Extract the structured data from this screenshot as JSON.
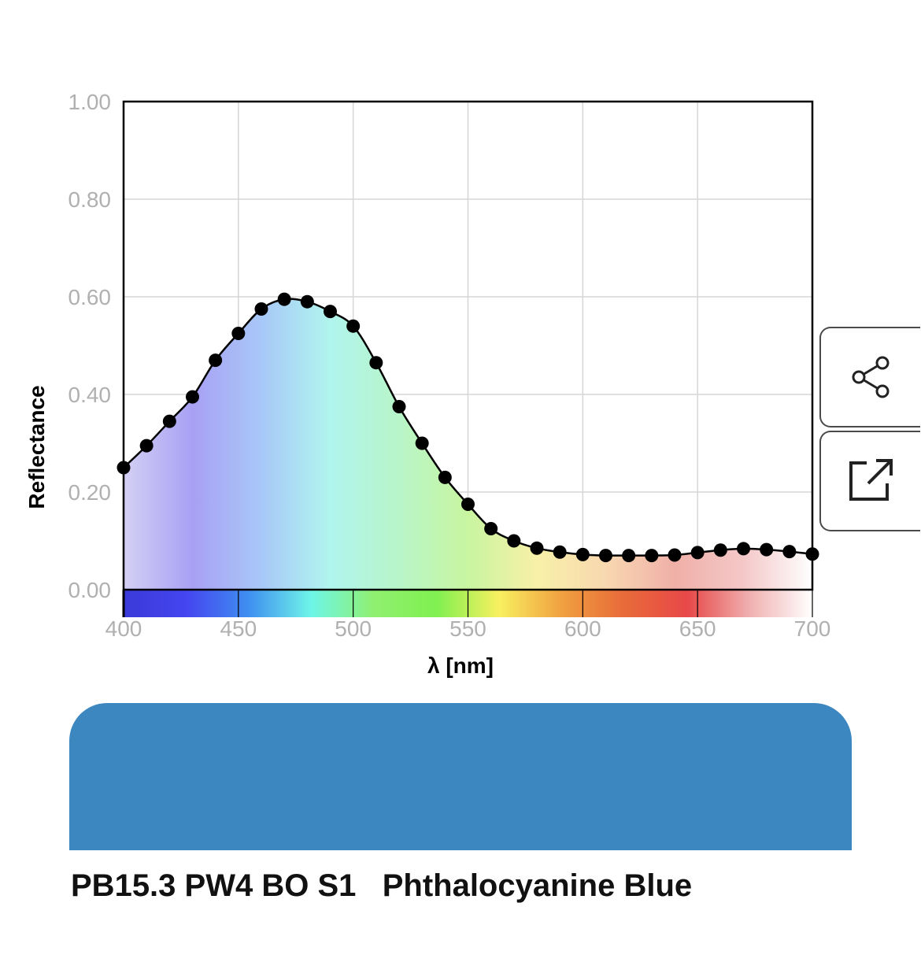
{
  "chart_data": {
    "type": "line",
    "xlabel": "λ [nm]",
    "ylabel": "Reflectance",
    "xlim": [
      400,
      700
    ],
    "ylim": [
      0,
      1
    ],
    "x_ticks": [
      "400",
      "450",
      "500",
      "550",
      "600",
      "650",
      "700"
    ],
    "y_ticks": [
      "0.00",
      "0.20",
      "0.40",
      "0.60",
      "0.80",
      "1.00"
    ],
    "grid": true,
    "x": [
      400,
      410,
      420,
      430,
      440,
      450,
      460,
      470,
      480,
      490,
      500,
      510,
      520,
      530,
      540,
      550,
      560,
      570,
      580,
      590,
      600,
      610,
      620,
      630,
      640,
      650,
      660,
      670,
      680,
      690,
      700
    ],
    "y": [
      0.25,
      0.295,
      0.345,
      0.395,
      0.47,
      0.525,
      0.575,
      0.595,
      0.59,
      0.57,
      0.54,
      0.465,
      0.375,
      0.3,
      0.23,
      0.175,
      0.125,
      0.1,
      0.085,
      0.077,
      0.072,
      0.07,
      0.07,
      0.07,
      0.071,
      0.076,
      0.081,
      0.084,
      0.082,
      0.078,
      0.073
    ],
    "line_color": "#000000",
    "point_color": "#000000"
  },
  "spectrum_colors": [
    "#3a3ad8",
    "#4545f0",
    "#3f8ff0",
    "#6ff5e8",
    "#8ff070",
    "#80f050",
    "#f8f060",
    "#f0a040",
    "#e86a3a",
    "#e84848",
    "#f0b0b0",
    "#ffffff"
  ],
  "fill_colors": [
    "#d4d0f4",
    "#a8a0f4",
    "#a8c8f8",
    "#b0f5ee",
    "#b8f5c8",
    "#c8f5a0",
    "#f8f0a8",
    "#f8d8b0",
    "#f0b0a8",
    "#f4c8c8",
    "#ffffff"
  ],
  "swatch": {
    "color": "#3c87c0"
  },
  "caption": "PB15.3 PW4 BO S1   Phthalocyanine Blue",
  "icons": {
    "share": "share-icon",
    "open": "open-external-icon"
  }
}
